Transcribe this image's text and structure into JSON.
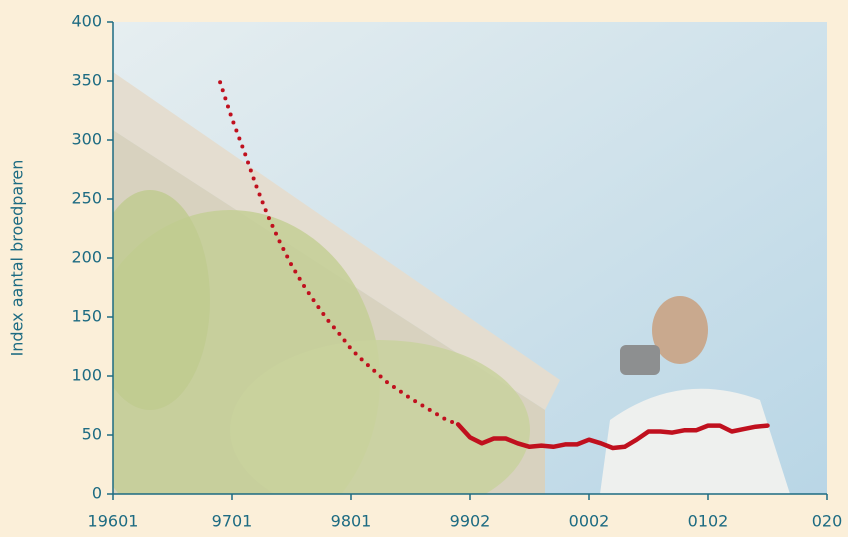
{
  "chart_data": {
    "type": "line",
    "y_label": "Index aantal broedparen",
    "xlim": [
      1960,
      2020
    ],
    "xticks": [
      {
        "value": 1960,
        "label": "19601"
      },
      {
        "value": 1970,
        "label": "9701"
      },
      {
        "value": 1980,
        "label": "9801"
      },
      {
        "value": 1990,
        "label": "9902"
      },
      {
        "value": 2000,
        "label": "0002"
      },
      {
        "value": 2010,
        "label": "0102"
      },
      {
        "value": 2020,
        "label": "020"
      }
    ],
    "ylim": [
      0,
      400
    ],
    "yticks": [
      0,
      50,
      100,
      150,
      200,
      250,
      300,
      350,
      400
    ],
    "series": [
      {
        "color": "#c0101e",
        "dash": "dotted",
        "x": [
          1969,
          1970,
          1971,
          1972,
          1973,
          1974,
          1975,
          1976,
          1977,
          1978,
          1979,
          1980,
          1981,
          1982,
          1983,
          1984,
          1985,
          1986,
          1987,
          1988,
          1989
        ],
        "values": [
          349,
          318,
          291,
          262,
          236,
          214,
          194,
          177,
          162,
          148,
          136,
          123,
          113,
          104,
          95,
          88,
          81,
          75,
          69,
          63,
          59
        ]
      },
      {
        "color": "#c0101e",
        "dash": "solid",
        "x": [
          1989,
          1990,
          1991,
          1992,
          1993,
          1994,
          1995,
          1996,
          1997,
          1998,
          1999,
          2000,
          2001,
          2002,
          2003,
          2004,
          2005,
          2006,
          2007,
          2008,
          2009,
          2010,
          2011,
          2012,
          2013,
          2014,
          2015
        ],
        "values": [
          59,
          48,
          43,
          47,
          47,
          43,
          40,
          41,
          40,
          42,
          42,
          46,
          43,
          39,
          40,
          46,
          53,
          53,
          52,
          54,
          54,
          58,
          58,
          53,
          55,
          57,
          58
        ]
      }
    ]
  }
}
